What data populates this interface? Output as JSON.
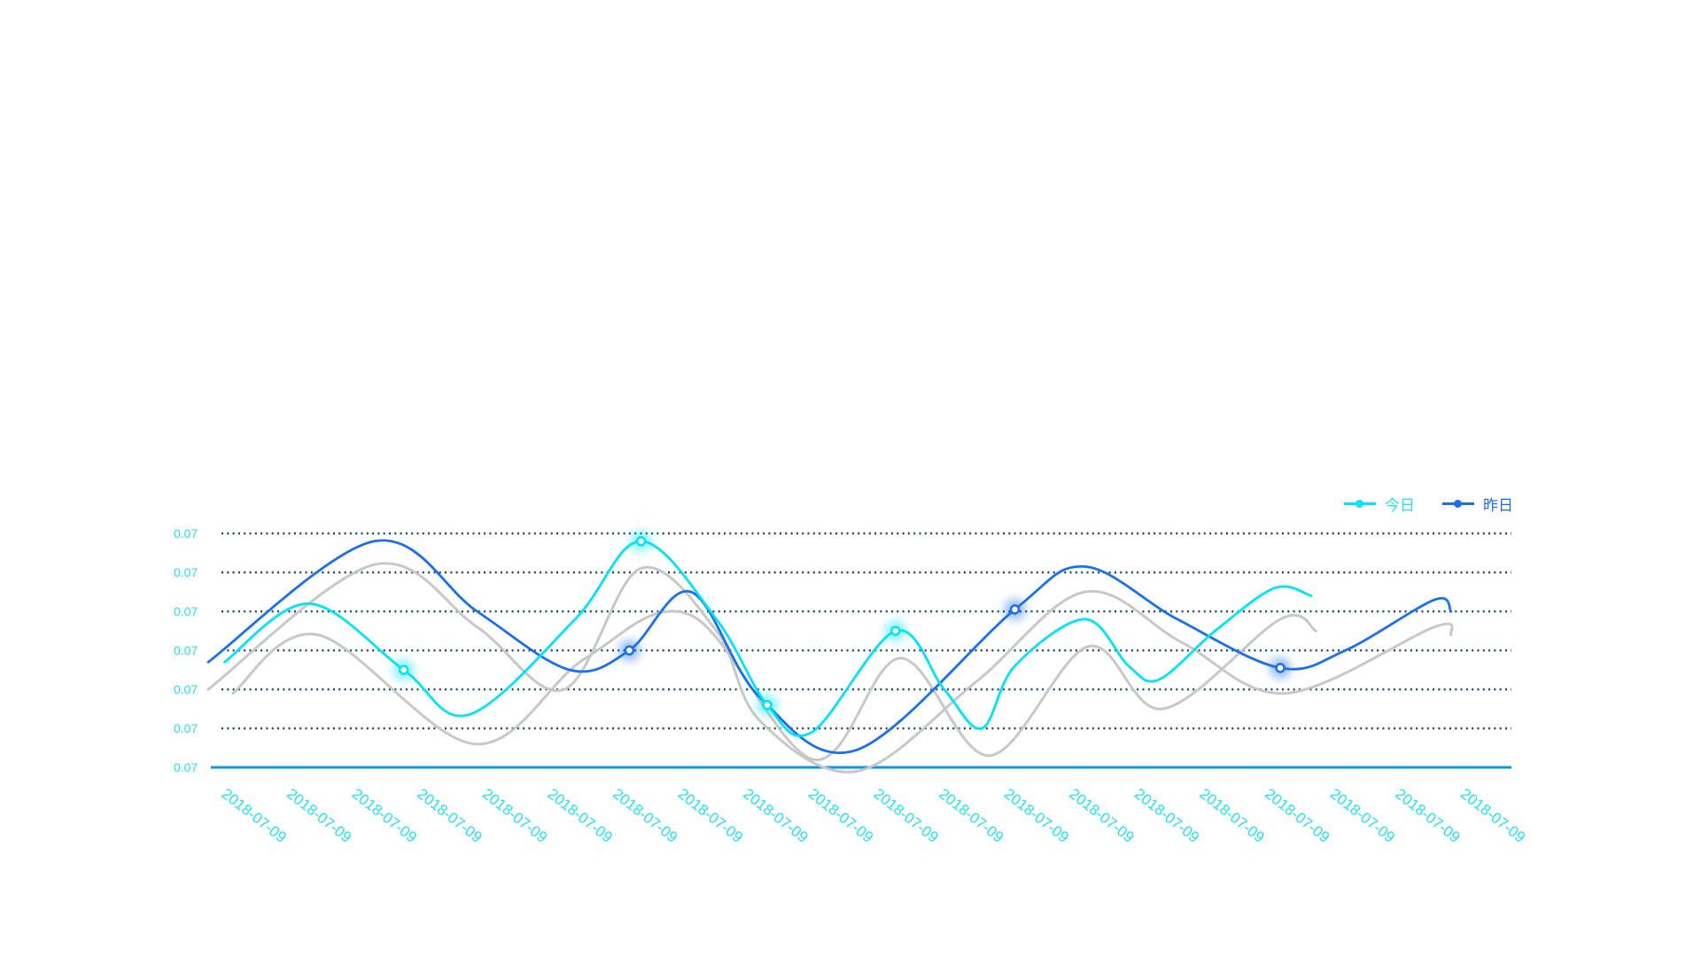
{
  "chart_data": {
    "type": "line",
    "title": "",
    "xlabel": "",
    "ylabel": "",
    "y_tick_labels": [
      "0.07",
      "0.07",
      "0.07",
      "0.07",
      "0.07",
      "0.07",
      "0.07"
    ],
    "x_tick_labels": [
      "2018-07-09",
      "2018-07-09",
      "2018-07-09",
      "2018-07-09",
      "2018-07-09",
      "2018-07-09",
      "2018-07-09",
      "2018-07-09",
      "2018-07-09",
      "2018-07-09",
      "2018-07-09",
      "2018-07-09",
      "2018-07-09",
      "2018-07-09",
      "2018-07-09",
      "2018-07-09",
      "2018-07-09",
      "2018-07-09",
      "2018-07-09",
      "2018-07-09"
    ],
    "grid": "dotted horizontal",
    "legend_position": "top-right",
    "smooth": true,
    "series": [
      {
        "name": "今日",
        "color": "#00e5f5",
        "points": [
          [
            0.24,
            2.7
          ],
          [
            1.47,
            4.2
          ],
          [
            2.85,
            2.5
          ],
          [
            3.8,
            1.35
          ],
          [
            5.35,
            3.8
          ],
          [
            6.31,
            5.8
          ],
          [
            7.41,
            3.8
          ],
          [
            8.15,
            1.6
          ],
          [
            8.8,
            0.9
          ],
          [
            10.02,
            3.5
          ],
          [
            10.73,
            2.0
          ],
          [
            11.28,
            1.0
          ],
          [
            11.76,
            2.6
          ],
          [
            12.78,
            3.8
          ],
          [
            13.42,
            2.6
          ],
          [
            13.86,
            2.25
          ],
          [
            14.68,
            3.5
          ],
          [
            15.55,
            4.6
          ],
          [
            16.08,
            4.4
          ]
        ],
        "markers": [
          [
            2.85,
            2.5
          ],
          [
            6.31,
            5.8
          ],
          [
            8.15,
            1.6
          ],
          [
            10.02,
            3.5
          ]
        ]
      },
      {
        "name": "昨日",
        "color": "#1a6ef0",
        "points": [
          [
            0,
            2.7
          ],
          [
            2.42,
            5.8
          ],
          [
            3.92,
            4.0
          ],
          [
            5.27,
            2.5
          ],
          [
            6.14,
            3.0
          ],
          [
            7.04,
            4.5
          ],
          [
            8.04,
            1.8
          ],
          [
            9.46,
            0.45
          ],
          [
            11.76,
            4.05
          ],
          [
            12.78,
            5.15
          ],
          [
            14.13,
            3.8
          ],
          [
            15.63,
            2.55
          ],
          [
            16.58,
            3.0
          ],
          [
            17.88,
            4.3
          ],
          [
            18.12,
            4.0
          ]
        ],
        "markers": [
          [
            6.14,
            3.0
          ],
          [
            11.76,
            4.05
          ],
          [
            15.63,
            2.55
          ]
        ]
      },
      {
        "color": "#c8c8c8",
        "points": [
          [
            0,
            2.0
          ],
          [
            2.42,
            5.2
          ],
          [
            3.92,
            3.6
          ],
          [
            5.19,
            2.0
          ],
          [
            6.3,
            5.1
          ],
          [
            7.41,
            3.5
          ],
          [
            8.04,
            1.2
          ],
          [
            9.46,
            -0.1
          ],
          [
            11.2,
            2.2
          ],
          [
            12.78,
            4.5
          ],
          [
            14.2,
            3.2
          ],
          [
            15.71,
            1.9
          ],
          [
            17.88,
            3.6
          ],
          [
            18.12,
            3.4
          ]
        ]
      },
      {
        "color": "#c8c8c8",
        "points": [
          [
            0.36,
            1.9
          ],
          [
            1.6,
            3.4
          ],
          [
            3.88,
            0.6
          ],
          [
            5.5,
            2.8
          ],
          [
            7.04,
            3.9
          ],
          [
            8.83,
            0.2
          ],
          [
            10.09,
            2.8
          ],
          [
            11.39,
            0.3
          ],
          [
            12.83,
            3.1
          ],
          [
            13.92,
            1.5
          ],
          [
            15.63,
            3.8
          ],
          [
            16.15,
            3.5
          ]
        ]
      }
    ],
    "colors": {
      "axis_text": "#22e3f0",
      "grid": "#1f4a5e",
      "baseline": "#1296db"
    }
  },
  "legend": {
    "today": "今日",
    "yesterday": "昨日"
  }
}
